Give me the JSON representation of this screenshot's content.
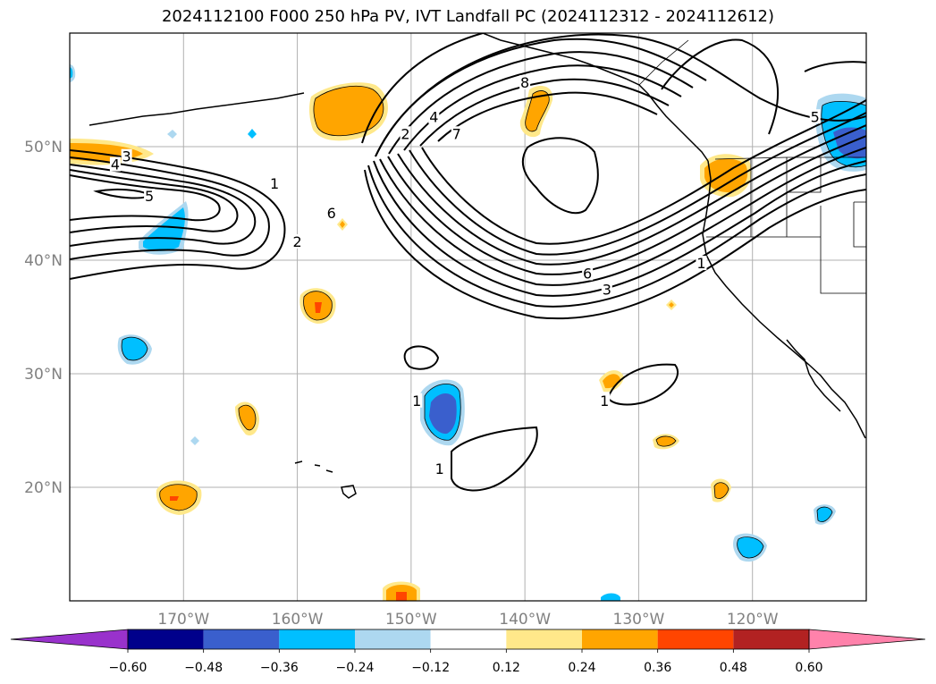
{
  "title": "2024112100 F000 250 hPa PV, IVT Landfall PC (2024112312 - 2024112612)",
  "map": {
    "lon_range": [
      -180,
      -110
    ],
    "lat_range": [
      10,
      60
    ],
    "lon_ticks": [
      {
        "value": -170,
        "label": "170°W"
      },
      {
        "value": -160,
        "label": "160°W"
      },
      {
        "value": -150,
        "label": "150°W"
      },
      {
        "value": -140,
        "label": "140°W"
      },
      {
        "value": -130,
        "label": "130°W"
      },
      {
        "value": -120,
        "label": "120°W"
      }
    ],
    "lat_ticks": [
      {
        "value": 20,
        "label": "20°N"
      },
      {
        "value": 30,
        "label": "30°N"
      },
      {
        "value": 40,
        "label": "40°N"
      },
      {
        "value": 50,
        "label": "50°N"
      }
    ],
    "gridlines": true,
    "contour_labels": [
      {
        "lon": -175.0,
        "lat": 49.0,
        "text": "3"
      },
      {
        "lon": -176.0,
        "lat": 48.3,
        "text": "4"
      },
      {
        "lon": -173.0,
        "lat": 45.5,
        "text": "5"
      },
      {
        "lon": -162.0,
        "lat": 46.6,
        "text": "1"
      },
      {
        "lon": -157.0,
        "lat": 44.0,
        "text": "6"
      },
      {
        "lon": -160.0,
        "lat": 41.5,
        "text": "2"
      },
      {
        "lon": -150.5,
        "lat": 51.0,
        "text": "2"
      },
      {
        "lon": -148.0,
        "lat": 52.5,
        "text": "4"
      },
      {
        "lon": -146.0,
        "lat": 51.0,
        "text": "7"
      },
      {
        "lon": -140.0,
        "lat": 55.5,
        "text": "8"
      },
      {
        "lon": -134.5,
        "lat": 38.7,
        "text": "6"
      },
      {
        "lon": -132.8,
        "lat": 37.3,
        "text": "3"
      },
      {
        "lon": -124.5,
        "lat": 39.6,
        "text": "1"
      },
      {
        "lon": -147.5,
        "lat": 21.5,
        "text": "1"
      },
      {
        "lon": -149.5,
        "lat": 27.5,
        "text": "1"
      },
      {
        "lon": -133.0,
        "lat": 27.5,
        "text": "1"
      },
      {
        "lon": -114.5,
        "lat": 52.5,
        "text": "5"
      }
    ],
    "shading_legend": {
      "boundaries": [
        -0.6,
        -0.48,
        -0.36,
        -0.24,
        -0.12,
        0.12,
        0.24,
        0.36,
        0.48,
        0.6
      ],
      "labels": [
        "−0.60",
        "−0.48",
        "−0.36",
        "−0.24",
        "−0.12",
        "0.12",
        "0.24",
        "0.36",
        "0.48",
        "0.60"
      ],
      "colors": [
        "#9932cc",
        "#00008b",
        "#3a5fcd",
        "#00bfff",
        "#add8f0",
        "#ffffff",
        "#ffe88a",
        "#ffa500",
        "#ff4500",
        "#b22222",
        "#ff82ab"
      ]
    }
  }
}
